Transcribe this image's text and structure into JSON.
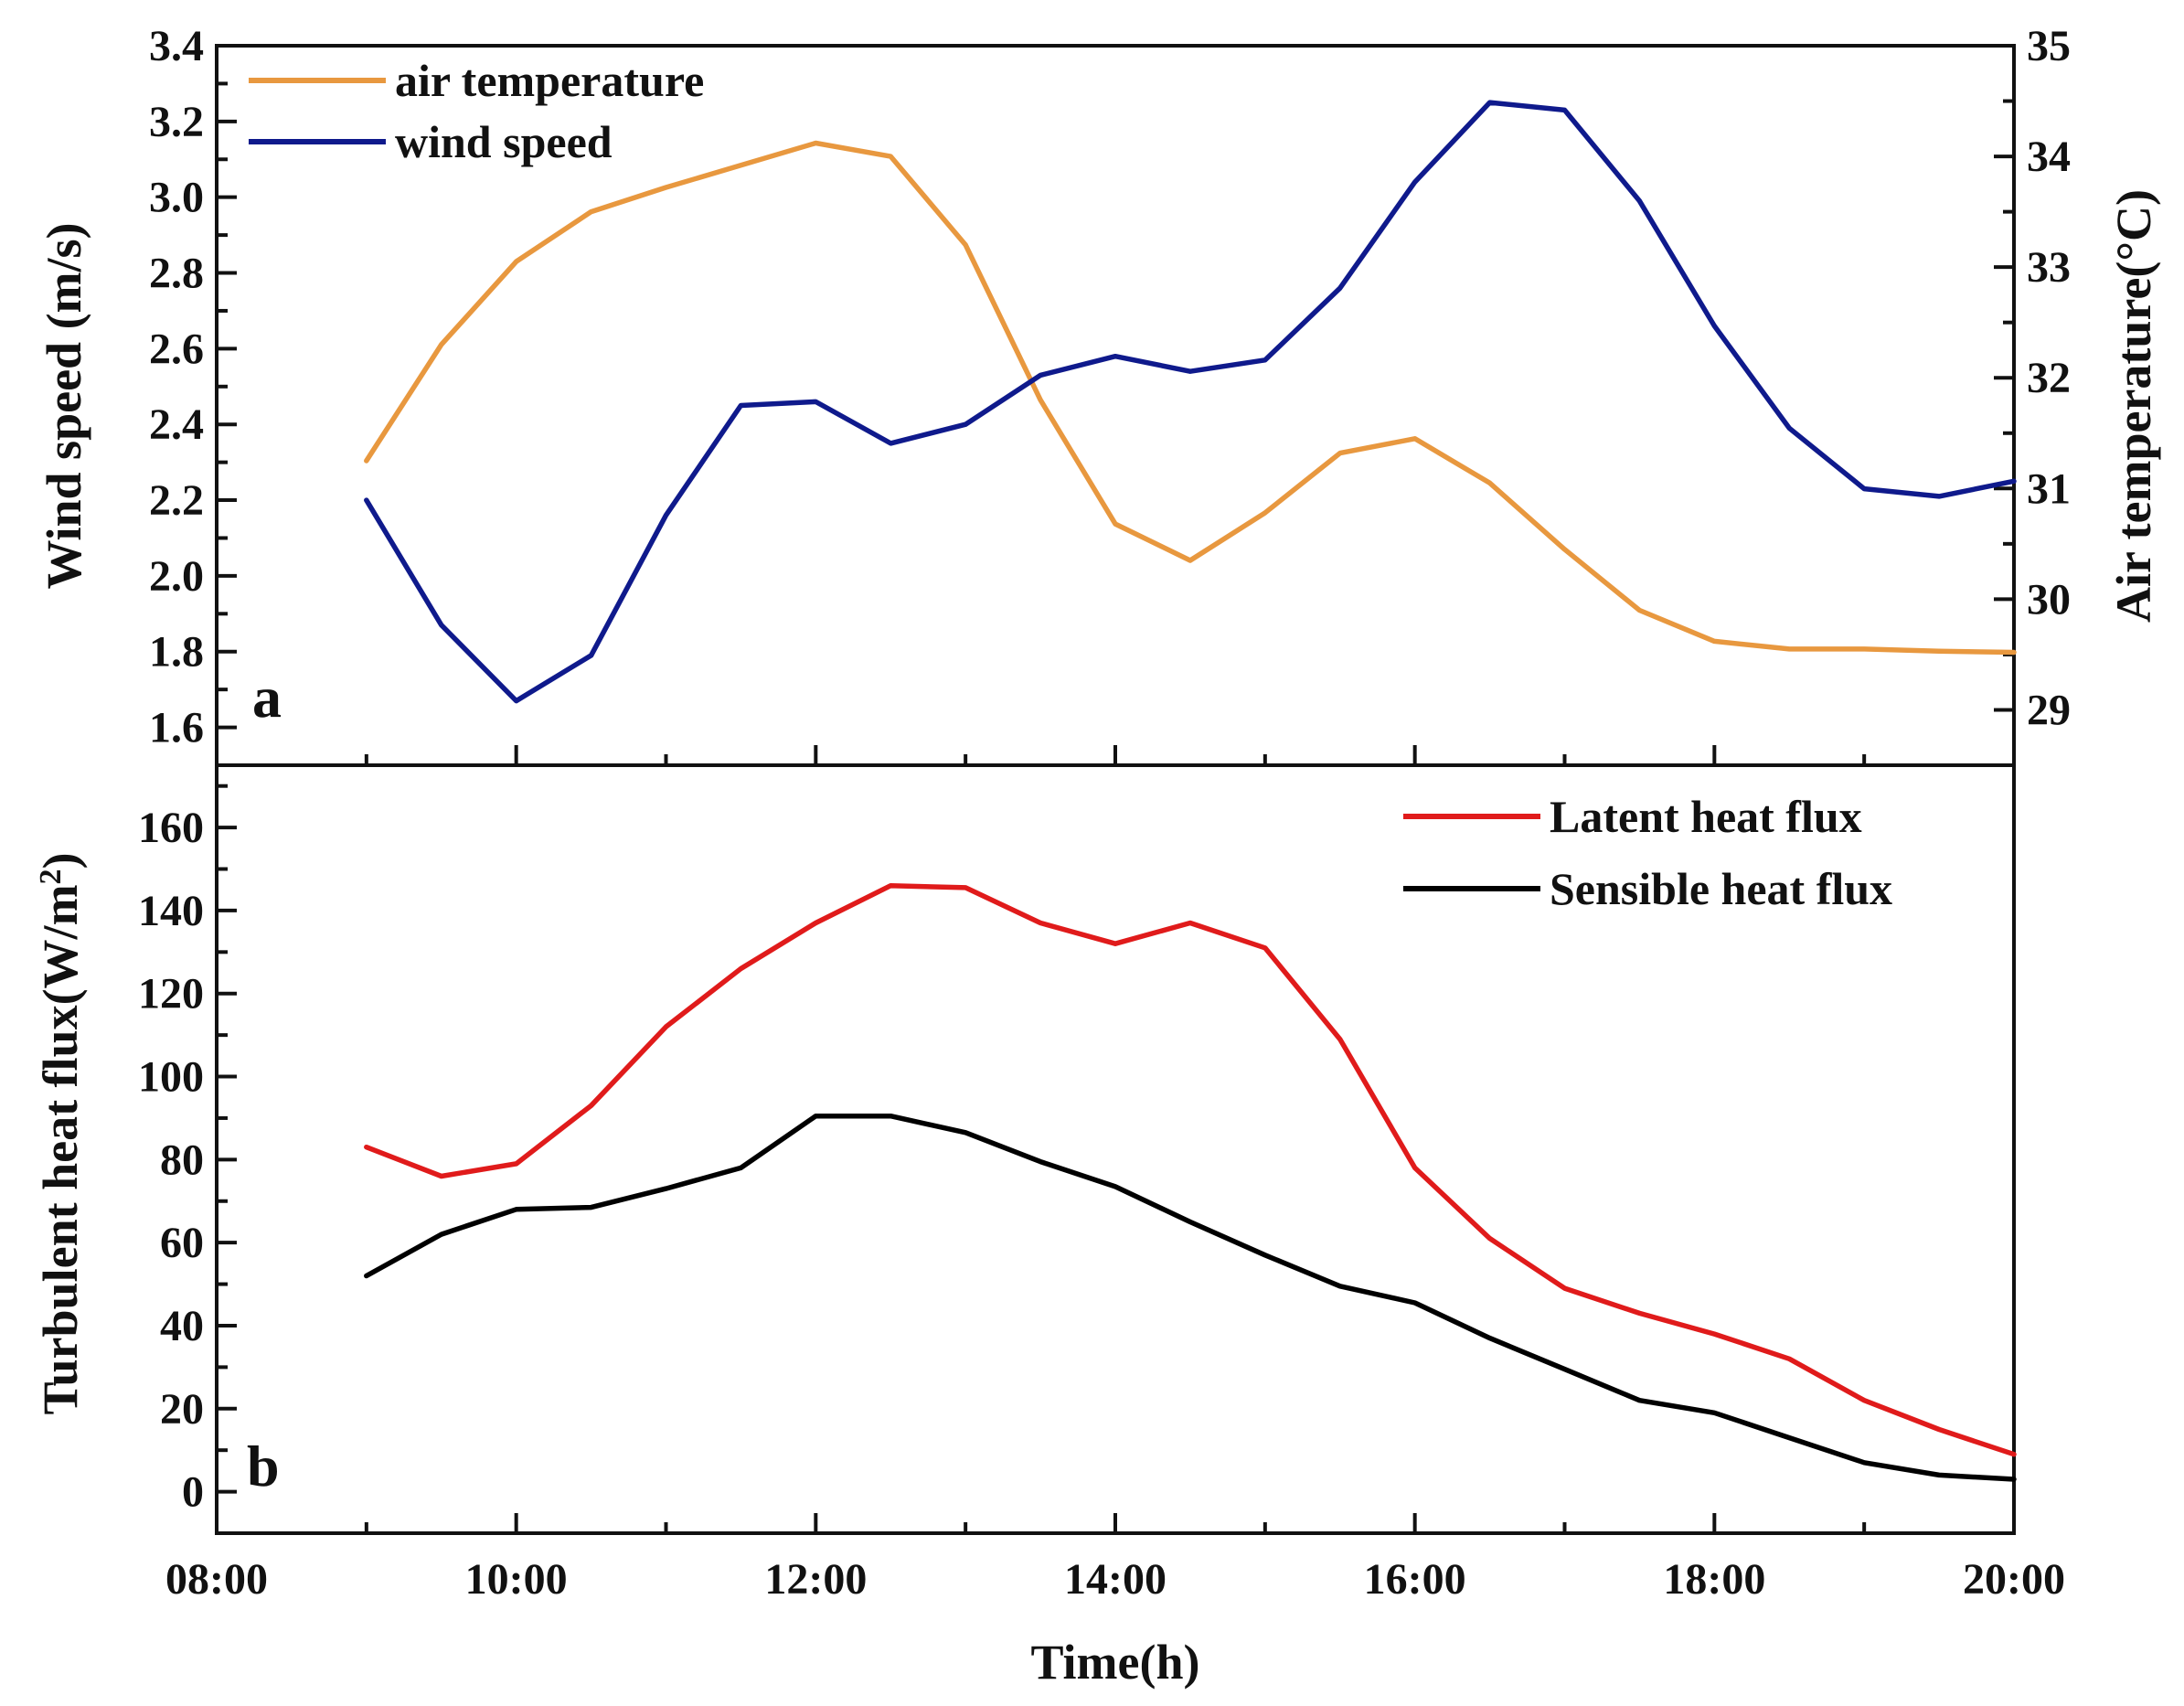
{
  "chart_data": [
    {
      "panel": "a",
      "type": "line",
      "x": [
        "09:00",
        "09:30",
        "10:00",
        "10:30",
        "11:00",
        "11:30",
        "12:00",
        "12:30",
        "13:00",
        "13:30",
        "14:00",
        "14:30",
        "15:00",
        "15:30",
        "16:00",
        "16:30",
        "17:00",
        "17:30",
        "18:00",
        "18:30",
        "19:00",
        "19:30",
        "20:00"
      ],
      "xlim": [
        "08:00",
        "20:00"
      ],
      "x_ticks": [
        "08:00",
        "10:00",
        "12:00",
        "14:00",
        "16:00",
        "18:00",
        "20:00"
      ],
      "ylabel": "Wind speed (m/s)",
      "ylim": [
        1.5,
        3.4
      ],
      "y_ticks": [
        "1.6",
        "1.8",
        "2.0",
        "2.2",
        "2.4",
        "2.6",
        "2.8",
        "3.0",
        "3.2",
        "3.4"
      ],
      "y2label": "Air temperature(°C)",
      "y2lim": [
        28.5,
        35
      ],
      "y2_ticks": [
        "29",
        "30",
        "31",
        "32",
        "33",
        "34",
        "35"
      ],
      "legend_position": "top-left",
      "series": [
        {
          "name": "air temperature",
          "axis": "right",
          "color": "#E8983F",
          "values": [
            31.25,
            32.3,
            33.05,
            33.5,
            33.72,
            33.92,
            34.12,
            34.0,
            33.2,
            31.8,
            30.68,
            30.35,
            30.78,
            31.32,
            31.45,
            31.05,
            30.45,
            29.9,
            29.62,
            29.55,
            29.55,
            29.53,
            29.52
          ]
        },
        {
          "name": "wind speed",
          "axis": "left",
          "color": "#0F1A8C",
          "values": [
            2.2,
            1.87,
            1.67,
            1.79,
            2.16,
            2.45,
            2.46,
            2.35,
            2.4,
            2.53,
            2.58,
            2.54,
            2.57,
            2.76,
            3.04,
            3.25,
            3.23,
            2.99,
            2.66,
            2.39,
            2.23,
            2.21,
            2.25
          ]
        }
      ]
    },
    {
      "panel": "b",
      "type": "line",
      "x": [
        "09:00",
        "09:30",
        "10:00",
        "10:30",
        "11:00",
        "11:30",
        "12:00",
        "12:30",
        "13:00",
        "13:30",
        "14:00",
        "14:30",
        "15:00",
        "15:30",
        "16:00",
        "16:30",
        "17:00",
        "17:30",
        "18:00",
        "18:30",
        "19:00",
        "19:30",
        "20:00"
      ],
      "xlim": [
        "08:00",
        "20:00"
      ],
      "x_ticks": [
        "08:00",
        "10:00",
        "12:00",
        "14:00",
        "16:00",
        "18:00",
        "20:00"
      ],
      "xlabel": "Time(h)",
      "ylabel_text": "Turbulent heat flux(W/m",
      "ylabel_sup": "2",
      "ylabel_close": ")",
      "ylim": [
        -10,
        175
      ],
      "y_ticks": [
        "0",
        "20",
        "40",
        "60",
        "80",
        "100",
        "120",
        "140",
        "160"
      ],
      "legend_position": "top-right",
      "series": [
        {
          "name": "Latent heat flux",
          "color": "#E01B1B",
          "values": [
            83,
            76,
            79,
            93,
            112,
            126,
            137,
            146,
            145.5,
            137,
            132,
            137,
            131,
            109,
            78,
            61,
            49,
            43,
            38,
            32,
            22,
            15,
            9
          ]
        },
        {
          "name": "Sensible heat flux",
          "color": "#000000",
          "values": [
            52,
            62,
            68,
            68.5,
            73,
            78,
            90.5,
            90.5,
            86.5,
            79.5,
            73.5,
            65,
            57,
            49.5,
            45.5,
            37,
            29.5,
            22,
            19,
            13,
            7,
            4,
            3
          ]
        }
      ]
    }
  ],
  "panel_letters": {
    "a": "a",
    "b": "b"
  }
}
